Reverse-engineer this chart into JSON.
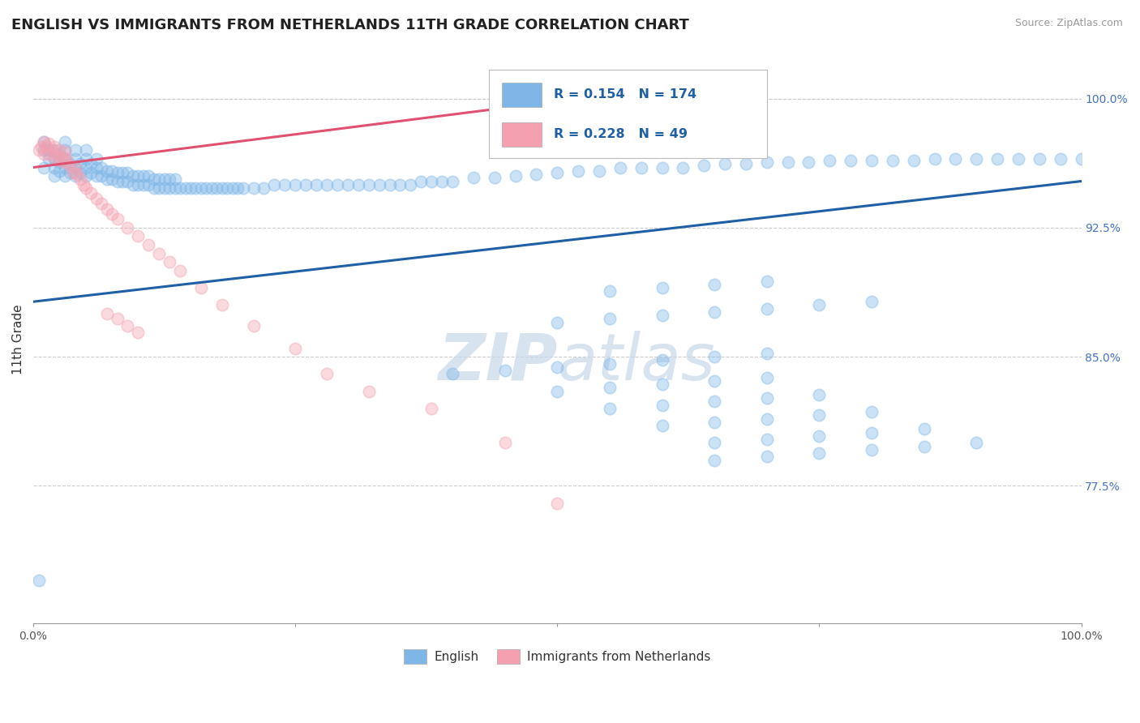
{
  "title": "ENGLISH VS IMMIGRANTS FROM NETHERLANDS 11TH GRADE CORRELATION CHART",
  "source_text": "Source: ZipAtlas.com",
  "ylabel": "11th Grade",
  "x_min": 0.0,
  "x_max": 1.0,
  "y_min": 0.695,
  "y_max": 1.025,
  "y_ticks_right": [
    0.775,
    0.85,
    0.925,
    1.0
  ],
  "y_tick_labels_right": [
    "77.5%",
    "85.0%",
    "92.5%",
    "100.0%"
  ],
  "legend_blue_label": "English",
  "legend_pink_label": "Immigrants from Netherlands",
  "blue_R": 0.154,
  "blue_N": 174,
  "pink_R": 0.228,
  "pink_N": 49,
  "blue_color": "#7EB6E8",
  "pink_color": "#F4A0B0",
  "blue_line_color": "#1F5FA6",
  "pink_line_color": "#E05070",
  "watermark_color": "#C8D8EA",
  "blue_x": [
    0.005,
    0.01,
    0.01,
    0.01,
    0.015,
    0.015,
    0.02,
    0.02,
    0.02,
    0.02,
    0.025,
    0.025,
    0.025,
    0.03,
    0.03,
    0.03,
    0.03,
    0.03,
    0.035,
    0.035,
    0.04,
    0.04,
    0.04,
    0.04,
    0.045,
    0.045,
    0.05,
    0.05,
    0.05,
    0.05,
    0.055,
    0.055,
    0.06,
    0.06,
    0.06,
    0.065,
    0.065,
    0.07,
    0.07,
    0.075,
    0.075,
    0.08,
    0.08,
    0.085,
    0.085,
    0.09,
    0.09,
    0.095,
    0.095,
    0.1,
    0.1,
    0.105,
    0.105,
    0.11,
    0.11,
    0.115,
    0.115,
    0.12,
    0.12,
    0.125,
    0.125,
    0.13,
    0.13,
    0.135,
    0.135,
    0.14,
    0.145,
    0.15,
    0.155,
    0.16,
    0.165,
    0.17,
    0.175,
    0.18,
    0.185,
    0.19,
    0.195,
    0.2,
    0.21,
    0.22,
    0.23,
    0.24,
    0.25,
    0.26,
    0.27,
    0.28,
    0.29,
    0.3,
    0.31,
    0.32,
    0.33,
    0.34,
    0.35,
    0.36,
    0.37,
    0.38,
    0.39,
    0.4,
    0.42,
    0.44,
    0.46,
    0.48,
    0.5,
    0.52,
    0.54,
    0.56,
    0.58,
    0.6,
    0.62,
    0.64,
    0.66,
    0.68,
    0.7,
    0.72,
    0.74,
    0.76,
    0.78,
    0.8,
    0.82,
    0.84,
    0.86,
    0.88,
    0.9,
    0.92,
    0.94,
    0.96,
    0.98,
    1.0,
    0.4,
    0.45,
    0.5,
    0.55,
    0.6,
    0.65,
    0.7,
    0.5,
    0.55,
    0.6,
    0.65,
    0.7,
    0.75,
    0.8,
    0.55,
    0.6,
    0.65,
    0.7,
    0.5,
    0.55,
    0.6,
    0.65,
    0.7,
    0.55,
    0.6,
    0.65,
    0.7,
    0.75,
    0.6,
    0.65,
    0.7,
    0.75,
    0.8,
    0.65,
    0.7,
    0.75,
    0.8,
    0.85,
    0.65,
    0.7,
    0.75,
    0.8,
    0.85,
    0.9
  ],
  "blue_y": [
    0.72,
    0.96,
    0.97,
    0.975,
    0.965,
    0.97,
    0.955,
    0.96,
    0.965,
    0.97,
    0.958,
    0.963,
    0.968,
    0.955,
    0.96,
    0.965,
    0.97,
    0.975,
    0.957,
    0.962,
    0.955,
    0.96,
    0.965,
    0.97,
    0.957,
    0.962,
    0.955,
    0.96,
    0.965,
    0.97,
    0.957,
    0.962,
    0.955,
    0.96,
    0.965,
    0.955,
    0.96,
    0.953,
    0.958,
    0.953,
    0.958,
    0.952,
    0.957,
    0.952,
    0.957,
    0.952,
    0.957,
    0.95,
    0.955,
    0.95,
    0.955,
    0.95,
    0.955,
    0.95,
    0.955,
    0.948,
    0.953,
    0.948,
    0.953,
    0.948,
    0.953,
    0.948,
    0.953,
    0.948,
    0.953,
    0.948,
    0.948,
    0.948,
    0.948,
    0.948,
    0.948,
    0.948,
    0.948,
    0.948,
    0.948,
    0.948,
    0.948,
    0.948,
    0.948,
    0.948,
    0.95,
    0.95,
    0.95,
    0.95,
    0.95,
    0.95,
    0.95,
    0.95,
    0.95,
    0.95,
    0.95,
    0.95,
    0.95,
    0.95,
    0.952,
    0.952,
    0.952,
    0.952,
    0.954,
    0.954,
    0.955,
    0.956,
    0.957,
    0.958,
    0.958,
    0.96,
    0.96,
    0.96,
    0.96,
    0.961,
    0.962,
    0.962,
    0.963,
    0.963,
    0.963,
    0.964,
    0.964,
    0.964,
    0.964,
    0.964,
    0.965,
    0.965,
    0.965,
    0.965,
    0.965,
    0.965,
    0.965,
    0.965,
    0.84,
    0.842,
    0.844,
    0.846,
    0.848,
    0.85,
    0.852,
    0.87,
    0.872,
    0.874,
    0.876,
    0.878,
    0.88,
    0.882,
    0.888,
    0.89,
    0.892,
    0.894,
    0.83,
    0.832,
    0.834,
    0.836,
    0.838,
    0.82,
    0.822,
    0.824,
    0.826,
    0.828,
    0.81,
    0.812,
    0.814,
    0.816,
    0.818,
    0.8,
    0.802,
    0.804,
    0.806,
    0.808,
    0.79,
    0.792,
    0.794,
    0.796,
    0.798,
    0.8
  ],
  "pink_x": [
    0.005,
    0.008,
    0.01,
    0.01,
    0.012,
    0.015,
    0.015,
    0.018,
    0.02,
    0.02,
    0.022,
    0.025,
    0.025,
    0.028,
    0.03,
    0.03,
    0.032,
    0.035,
    0.038,
    0.04,
    0.042,
    0.045,
    0.048,
    0.05,
    0.055,
    0.06,
    0.065,
    0.07,
    0.075,
    0.08,
    0.09,
    0.1,
    0.11,
    0.12,
    0.13,
    0.14,
    0.16,
    0.18,
    0.21,
    0.25,
    0.07,
    0.08,
    0.09,
    0.1,
    0.28,
    0.32,
    0.38,
    0.45,
    0.5
  ],
  "pink_y": [
    0.97,
    0.972,
    0.968,
    0.975,
    0.972,
    0.968,
    0.974,
    0.97,
    0.966,
    0.972,
    0.968,
    0.964,
    0.97,
    0.966,
    0.963,
    0.969,
    0.965,
    0.961,
    0.957,
    0.96,
    0.956,
    0.953,
    0.95,
    0.948,
    0.945,
    0.942,
    0.939,
    0.936,
    0.933,
    0.93,
    0.925,
    0.92,
    0.915,
    0.91,
    0.905,
    0.9,
    0.89,
    0.88,
    0.868,
    0.855,
    0.875,
    0.872,
    0.868,
    0.864,
    0.84,
    0.83,
    0.82,
    0.8,
    0.765
  ],
  "blue_trend_x": [
    0.0,
    1.0
  ],
  "blue_trend_y": [
    0.882,
    0.952
  ],
  "pink_trend_x": [
    0.0,
    0.52
  ],
  "pink_trend_y": [
    0.96,
    1.0
  ],
  "grid_color": "#CCCCCC",
  "bg_color": "#FFFFFF",
  "title_fontsize": 13,
  "axis_fontsize": 11,
  "tick_fontsize": 10,
  "marker_size": 110,
  "marker_alpha": 0.4,
  "marker_linewidth": 1.2
}
